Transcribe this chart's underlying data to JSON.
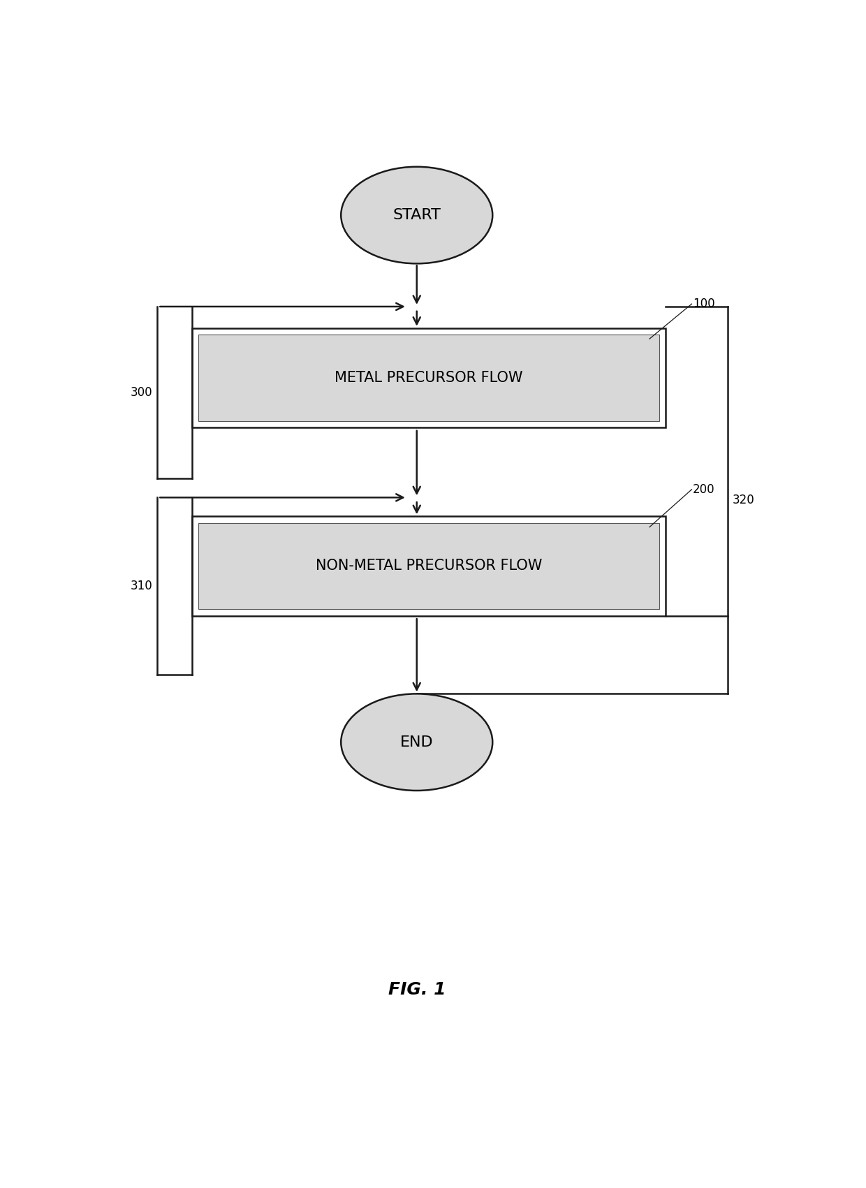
{
  "title": "FIG. 1",
  "background_color": "#ffffff",
  "start_label": "START",
  "end_label": "END",
  "box1_label": "METAL PRECURSOR FLOW",
  "box2_label": "NON-METAL PRECURSOR FLOW",
  "label_100": "100",
  "label_200": "200",
  "label_300": "300",
  "label_310": "310",
  "label_320": "320",
  "ellipse_fill": "#d8d8d8",
  "box_fill": "#d8d8d8",
  "line_color": "#1a1a1a",
  "text_color": "#000000",
  "font_size_node": 16,
  "font_size_box": 15,
  "font_size_label": 12,
  "font_size_title": 18,
  "lw": 1.8
}
